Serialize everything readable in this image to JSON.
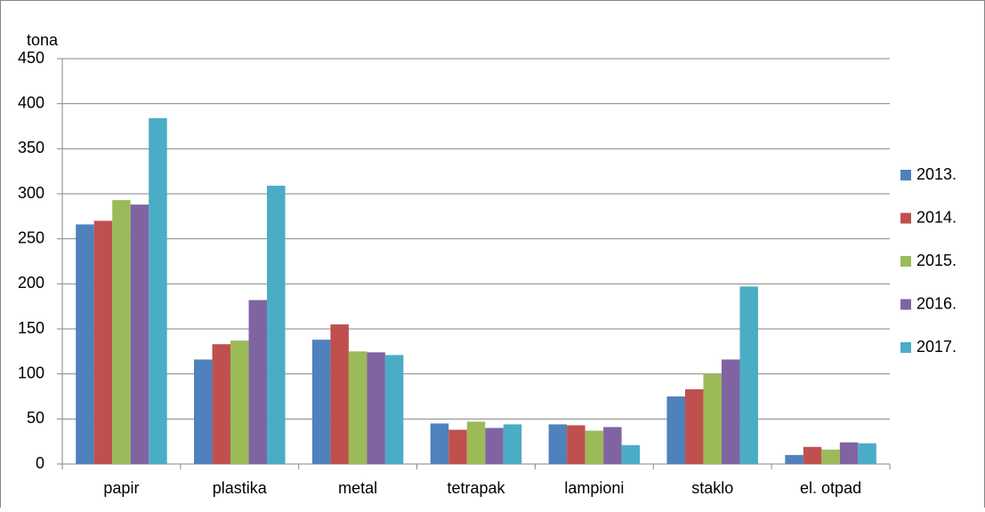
{
  "chart_data": {
    "type": "bar",
    "y_label": "tona",
    "categories": [
      "papir",
      "plastika",
      "metal",
      "tetrapak",
      "lampioni",
      "staklo",
      "el. otpad"
    ],
    "series": [
      {
        "name": "2013.",
        "color": "#4f81bd",
        "values": [
          266,
          116,
          138,
          45,
          44,
          75,
          10
        ]
      },
      {
        "name": "2014.",
        "color": "#c0504d",
        "values": [
          270,
          133,
          155,
          38,
          43,
          83,
          19
        ]
      },
      {
        "name": "2015.",
        "color": "#9bbb59",
        "values": [
          293,
          137,
          125,
          47,
          37,
          100,
          16
        ]
      },
      {
        "name": "2016.",
        "color": "#8064a2",
        "values": [
          288,
          182,
          124,
          40,
          41,
          116,
          24
        ]
      },
      {
        "name": "2017.",
        "color": "#4bacc6",
        "values": [
          384,
          309,
          121,
          44,
          21,
          197,
          23
        ]
      }
    ],
    "ylim": [
      0,
      450
    ],
    "yticks": [
      0,
      50,
      100,
      150,
      200,
      250,
      300,
      350,
      400,
      450
    ],
    "grid": true,
    "legend": "right"
  }
}
